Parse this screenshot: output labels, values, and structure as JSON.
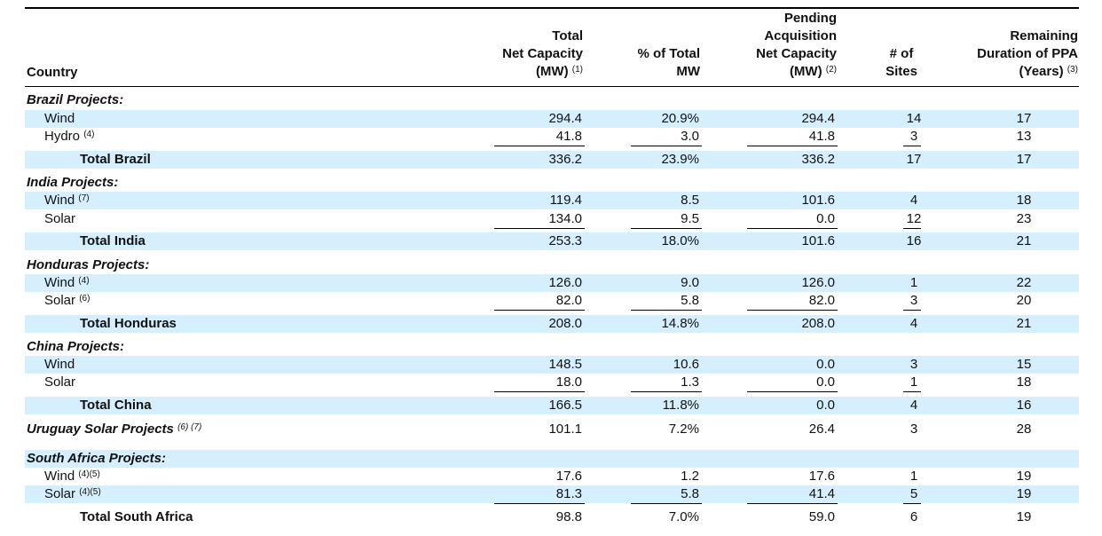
{
  "header": {
    "country": "Country",
    "total_capacity": {
      "l1": "Total",
      "l2": "Net Capacity",
      "l3": "(MW)",
      "note": "(1)"
    },
    "pct": {
      "l1": "% of Total",
      "l2": "MW"
    },
    "pending": {
      "l1": "Pending",
      "l2": "Acquisition",
      "l3": "Net Capacity",
      "l4": "(MW)",
      "note": "(2)"
    },
    "sites": {
      "l1": "# of",
      "l2": "Sites"
    },
    "remaining": {
      "l1": "Remaining",
      "l2": "Duration of PPA",
      "l3": "(Years)",
      "note": "(3)"
    }
  },
  "rows": [
    {
      "type": "section",
      "label": "Brazil Projects:",
      "blue": false
    },
    {
      "type": "item",
      "label": "Wind",
      "cap": "294.4",
      "pct": "20.9%",
      "pend": "294.4",
      "sites": "14",
      "rem": "17",
      "blue": true
    },
    {
      "type": "item",
      "label": "Hydro",
      "note": "(4)",
      "cap": "41.8",
      "pct": "3.0",
      "pend": "41.8",
      "sites": "3",
      "rem": "13",
      "blue": false,
      "underline": true
    },
    {
      "type": "total",
      "label": "Total Brazil",
      "cap": "336.2",
      "pct": "23.9%",
      "pend": "336.2",
      "sites": "17",
      "rem": "17",
      "blue": true
    },
    {
      "type": "section",
      "label": "India Projects:",
      "blue": false
    },
    {
      "type": "item",
      "label": "Wind",
      "note": "(7)",
      "cap": "119.4",
      "pct": "8.5",
      "pend": "101.6",
      "sites": "4",
      "rem": "18",
      "blue": true
    },
    {
      "type": "item",
      "label": "Solar",
      "cap": "134.0",
      "pct": "9.5",
      "pend": "0.0",
      "sites": "12",
      "rem": "23",
      "blue": false,
      "underline": true
    },
    {
      "type": "total",
      "label": "Total India",
      "cap": "253.3",
      "pct": "18.0%",
      "pend": "101.6",
      "sites": "16",
      "rem": "21",
      "blue": true
    },
    {
      "type": "section",
      "label": "Honduras Projects:",
      "blue": false
    },
    {
      "type": "item",
      "label": "Wind",
      "note": "(4)",
      "cap": "126.0",
      "pct": "9.0",
      "pend": "126.0",
      "sites": "1",
      "rem": "22",
      "blue": true
    },
    {
      "type": "item",
      "label": "Solar",
      "note": "(6)",
      "cap": "82.0",
      "pct": "5.8",
      "pend": "82.0",
      "sites": "3",
      "rem": "20",
      "blue": false,
      "underline": true
    },
    {
      "type": "total",
      "label": "Total Honduras",
      "cap": "208.0",
      "pct": "14.8%",
      "pend": "208.0",
      "sites": "4",
      "rem": "21",
      "blue": true
    },
    {
      "type": "section",
      "label": "China Projects:",
      "blue": false
    },
    {
      "type": "item",
      "label": "Wind",
      "cap": "148.5",
      "pct": "10.6",
      "pend": "0.0",
      "sites": "3",
      "rem": "15",
      "blue": true
    },
    {
      "type": "item",
      "label": "Solar",
      "cap": "18.0",
      "pct": "1.3",
      "pend": "0.0",
      "sites": "1",
      "rem": "18",
      "blue": false,
      "underline": true
    },
    {
      "type": "total",
      "label": "Total China",
      "cap": "166.5",
      "pct": "11.8%",
      "pend": "0.0",
      "sites": "4",
      "rem": "16",
      "blue": true
    },
    {
      "type": "section",
      "label": "Uruguay Solar Projects",
      "note": "(6) (7)",
      "cap": "101.1",
      "pct": "7.2%",
      "pend": "26.4",
      "sites": "3",
      "rem": "28",
      "blue": false
    },
    {
      "type": "section",
      "label": "South Africa Projects:",
      "blue": true
    },
    {
      "type": "item",
      "label": "Wind",
      "note": "(4)(5)",
      "cap": "17.6",
      "pct": "1.2",
      "pend": "17.6",
      "sites": "1",
      "rem": "19",
      "blue": false
    },
    {
      "type": "item",
      "label": "Solar",
      "note": "(4)(5)",
      "cap": "81.3",
      "pct": "5.8",
      "pend": "41.4",
      "sites": "5",
      "rem": "19",
      "blue": true,
      "underline": true
    },
    {
      "type": "total",
      "label": "Total South Africa",
      "cap": "98.8",
      "pct": "7.0%",
      "pend": "59.0",
      "sites": "6",
      "rem": "19",
      "blue": false
    }
  ]
}
